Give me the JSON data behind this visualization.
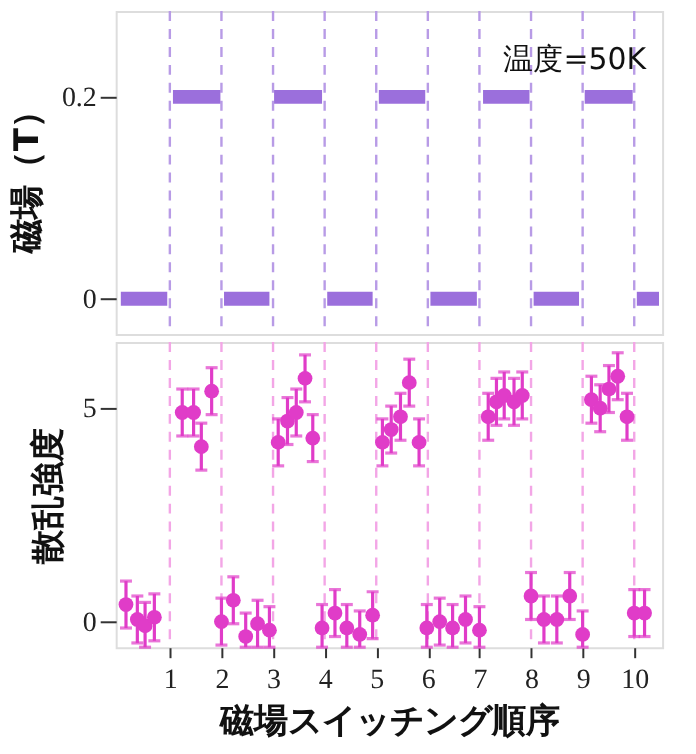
{
  "chart_data": [
    {
      "type": "line",
      "ylabel": "磁場（T）",
      "annotations": [
        "温度=50K"
      ],
      "x": [
        0.05,
        0.95,
        1.0,
        1.06,
        1.98,
        2.0,
        2.05,
        2.93,
        3.0,
        3.02,
        3.95,
        4.0,
        4.05,
        4.93,
        5.0,
        5.05,
        5.95,
        6.0,
        6.05,
        6.95,
        7.0,
        7.07,
        7.97,
        8.0,
        8.05,
        8.93,
        9.0,
        9.04,
        9.97,
        10.0,
        10.05,
        10.48
      ],
      "series": [
        {
          "color": "#9b6fdc",
          "values": [
            0,
            0,
            null,
            0.2,
            0.2,
            null,
            0,
            0,
            null,
            0.2,
            0.2,
            null,
            0,
            0,
            null,
            0.2,
            0.2,
            null,
            0,
            0,
            null,
            0.2,
            0.2,
            null,
            0,
            0,
            null,
            0.2,
            0.2,
            null,
            0,
            0
          ]
        }
      ],
      "xlim": [
        -0.05,
        10.54
      ],
      "ylim": [
        -0.035,
        0.285
      ],
      "yticks": [
        {
          "value": 0,
          "label": "0"
        },
        0.2
      ],
      "tick_labels": "y",
      "grid": false,
      "line_style": "solid",
      "ref_lines": [
        {
          "axis": "x",
          "value": 1,
          "color": "#b89be6",
          "line_style": "dashed"
        },
        {
          "axis": "x",
          "value": 2,
          "color": "#b89be6",
          "line_style": "dashed"
        },
        {
          "axis": "x",
          "value": 3,
          "color": "#b89be6",
          "line_style": "dashed"
        },
        {
          "axis": "x",
          "value": 4,
          "color": "#b89be6",
          "line_style": "dashed"
        },
        {
          "axis": "x",
          "value": 5,
          "color": "#b89be6",
          "line_style": "dashed"
        },
        {
          "axis": "x",
          "value": 6,
          "color": "#b89be6",
          "line_style": "dashed"
        },
        {
          "axis": "x",
          "value": 7,
          "color": "#b89be6",
          "line_style": "dashed"
        },
        {
          "axis": "x",
          "value": 8,
          "color": "#b89be6",
          "line_style": "dashed"
        },
        {
          "axis": "x",
          "value": 9,
          "color": "#b89be6",
          "line_style": "dashed"
        },
        {
          "axis": "x",
          "value": 10,
          "color": "#b89be6",
          "line_style": "dashed"
        }
      ]
    },
    {
      "type": "scatter",
      "ylabel": "散乱強度",
      "xlabel": "磁場スイッチング順序",
      "x": [
        0.15,
        0.37,
        0.52,
        0.7,
        1.24,
        1.46,
        1.61,
        1.81,
        2.0,
        2.23,
        2.47,
        2.7,
        2.93,
        3.1,
        3.28,
        3.45,
        3.62,
        3.77,
        3.95,
        4.2,
        4.43,
        4.68,
        4.93,
        5.12,
        5.29,
        5.47,
        5.64,
        5.83,
        5.98,
        6.23,
        6.48,
        6.73,
        7.0,
        7.17,
        7.33,
        7.48,
        7.67,
        7.83,
        8.0,
        8.25,
        8.5,
        8.75,
        9.0,
        9.17,
        9.34,
        9.51,
        9.68,
        9.86,
        10.0,
        10.2
      ],
      "series": [
        {
          "color": "#e03cc8",
          "values": [
            0.4,
            0.05,
            -0.1,
            0.1,
            4.9,
            4.9,
            4.1,
            5.4,
            0.0,
            0.5,
            -0.35,
            -0.05,
            -0.2,
            4.2,
            4.7,
            4.9,
            5.7,
            4.3,
            -0.15,
            0.2,
            -0.15,
            -0.3,
            0.15,
            4.2,
            4.5,
            4.8,
            5.6,
            4.2,
            -0.15,
            0.0,
            -0.15,
            0.05,
            -0.2,
            4.8,
            5.15,
            5.3,
            5.15,
            5.3,
            0.6,
            0.05,
            0.05,
            0.6,
            -0.3,
            5.2,
            5.0,
            5.45,
            5.75,
            4.8,
            0.2,
            0.2
          ],
          "errors": [
            0.55,
            0.55,
            [
              -0.6,
              0.45
            ],
            0.55,
            0.55,
            0.55,
            0.55,
            0.55,
            0.55,
            0.55,
            [
              -0.6,
              0.2
            ],
            [
              -0.6,
              0.5
            ],
            [
              -0.6,
              0.35
            ],
            0.55,
            0.55,
            0.55,
            0.55,
            0.55,
            [
              -0.6,
              0.4
            ],
            0.55,
            [
              -0.6,
              0.4
            ],
            [
              -0.6,
              0.25
            ],
            0.55,
            0.55,
            0.55,
            0.55,
            0.55,
            0.55,
            [
              -0.6,
              0.4
            ],
            0.55,
            [
              -0.6,
              0.4
            ],
            0.55,
            [
              -0.6,
              0.35
            ],
            0.55,
            0.55,
            0.55,
            0.55,
            0.55,
            0.55,
            0.55,
            0.55,
            0.55,
            [
              -0.6,
              0.25
            ],
            0.55,
            0.55,
            0.55,
            0.55,
            0.55,
            0.55,
            0.55
          ]
        }
      ],
      "xlim": [
        -0.05,
        10.54
      ],
      "ylim": [
        -0.6,
        6.55
      ],
      "yticks": [
        0,
        5
      ],
      "xticks": [
        1,
        2,
        3,
        4,
        5,
        6,
        7,
        8,
        9,
        10
      ],
      "grid": false,
      "marker": "circle",
      "ref_lines": [
        {
          "axis": "x",
          "value": 1,
          "color": "#f3a6e6",
          "line_style": "dashed"
        },
        {
          "axis": "x",
          "value": 2,
          "color": "#f3a6e6",
          "line_style": "dashed"
        },
        {
          "axis": "x",
          "value": 3,
          "color": "#f3a6e6",
          "line_style": "dashed"
        },
        {
          "axis": "x",
          "value": 4,
          "color": "#f3a6e6",
          "line_style": "dashed"
        },
        {
          "axis": "x",
          "value": 5,
          "color": "#f3a6e6",
          "line_style": "dashed"
        },
        {
          "axis": "x",
          "value": 6,
          "color": "#f3a6e6",
          "line_style": "dashed"
        },
        {
          "axis": "x",
          "value": 7,
          "color": "#f3a6e6",
          "line_style": "dashed"
        },
        {
          "axis": "x",
          "value": 8,
          "color": "#f3a6e6",
          "line_style": "dashed"
        },
        {
          "axis": "x",
          "value": 9,
          "color": "#f3a6e6",
          "line_style": "dashed"
        },
        {
          "axis": "x",
          "value": 10,
          "color": "#f3a6e6",
          "line_style": "dashed"
        }
      ]
    }
  ]
}
